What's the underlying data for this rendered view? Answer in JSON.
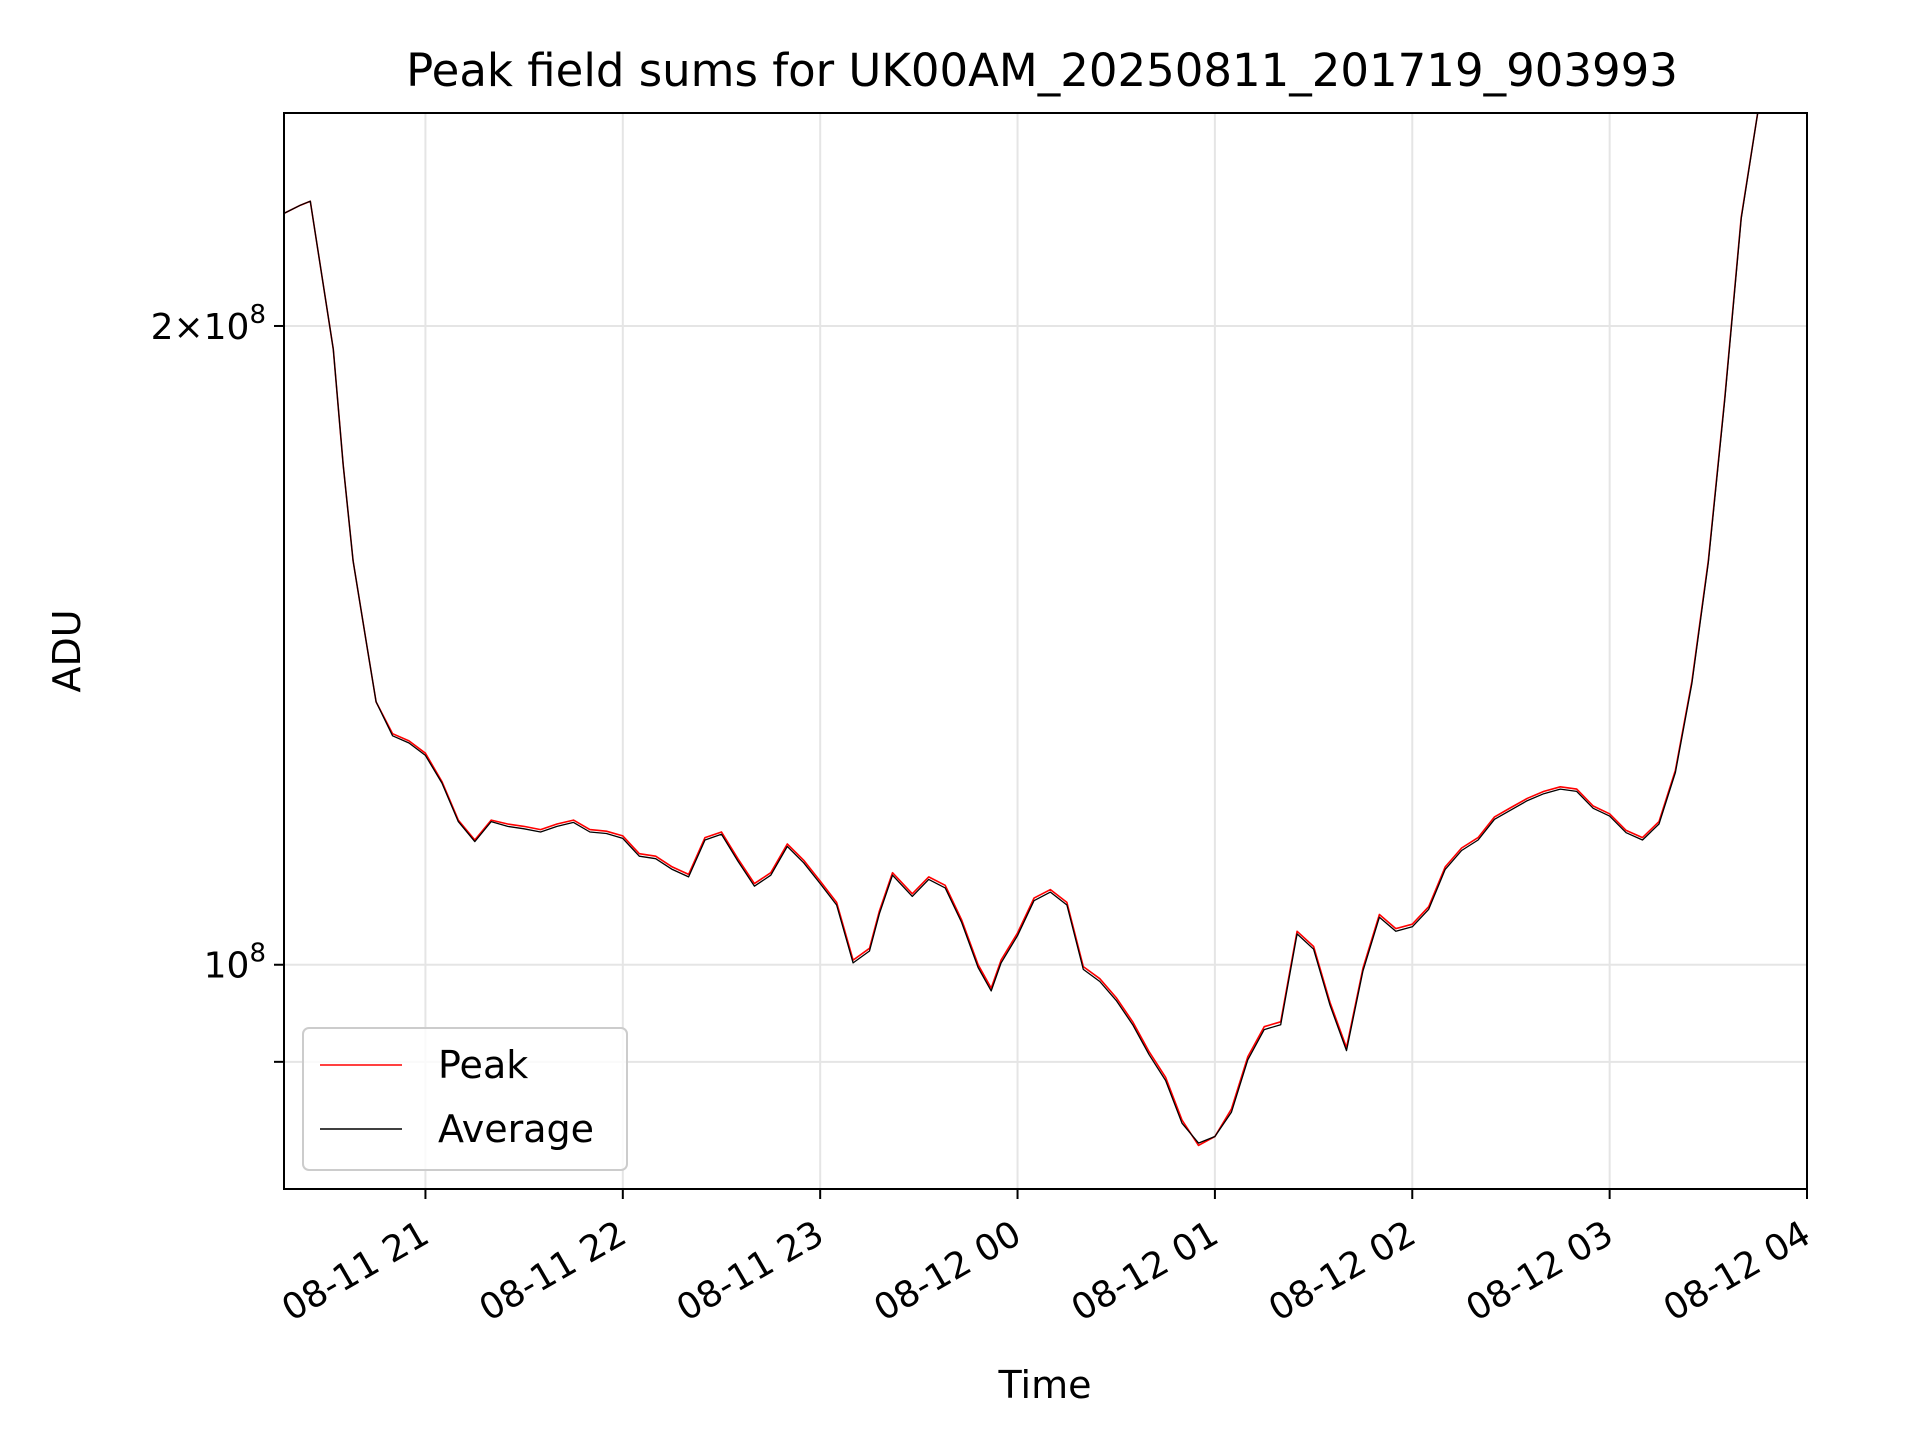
{
  "chart_data": {
    "type": "line",
    "title": "Peak field sums for UK00AM_20250811_201719_903993",
    "xlabel": "Time",
    "ylabel": "ADU",
    "y_scale": "log",
    "xlim": [
      "2025-08-11 20:17",
      "2025-08-12 04:00"
    ],
    "ylim": [
      78400000,
      252000000
    ],
    "grid": true,
    "legend_position": "lower-left",
    "x_ticks": [
      {
        "t": "2025-08-11 21:00",
        "label": "08-11 21"
      },
      {
        "t": "2025-08-11 22:00",
        "label": "08-11 22"
      },
      {
        "t": "2025-08-11 23:00",
        "label": "08-11 23"
      },
      {
        "t": "2025-08-12 00:00",
        "label": "08-12 00"
      },
      {
        "t": "2025-08-12 01:00",
        "label": "08-12 01"
      },
      {
        "t": "2025-08-12 02:00",
        "label": "08-12 02"
      },
      {
        "t": "2025-08-12 03:00",
        "label": "08-12 03"
      },
      {
        "t": "2025-08-12 04:00",
        "label": "08-12 04"
      }
    ],
    "y_ticks": [
      {
        "value": 200000000,
        "base": "2×10",
        "exp": "8"
      },
      {
        "value": 100000000,
        "base": "10",
        "exp": "8"
      },
      {
        "value": 90000000,
        "base": "",
        "exp": ""
      }
    ],
    "x": [
      "2025-08-11 20:17",
      "2025-08-11 20:22",
      "2025-08-11 20:25",
      "2025-08-11 20:32",
      "2025-08-11 20:35",
      "2025-08-11 20:38",
      "2025-08-11 20:42",
      "2025-08-11 20:45",
      "2025-08-11 20:50",
      "2025-08-11 20:55",
      "2025-08-11 21:00",
      "2025-08-11 21:05",
      "2025-08-11 21:10",
      "2025-08-11 21:15",
      "2025-08-11 21:20",
      "2025-08-11 21:25",
      "2025-08-11 21:30",
      "2025-08-11 21:35",
      "2025-08-11 21:40",
      "2025-08-11 21:45",
      "2025-08-11 21:50",
      "2025-08-11 21:55",
      "2025-08-11 22:00",
      "2025-08-11 22:05",
      "2025-08-11 22:10",
      "2025-08-11 22:15",
      "2025-08-11 22:20",
      "2025-08-11 22:25",
      "2025-08-11 22:30",
      "2025-08-11 22:35",
      "2025-08-11 22:40",
      "2025-08-11 22:45",
      "2025-08-11 22:50",
      "2025-08-11 22:55",
      "2025-08-11 23:00",
      "2025-08-11 23:05",
      "2025-08-11 23:10",
      "2025-08-11 23:15",
      "2025-08-11 23:18",
      "2025-08-11 23:22",
      "2025-08-11 23:28",
      "2025-08-11 23:33",
      "2025-08-11 23:38",
      "2025-08-11 23:43",
      "2025-08-11 23:48",
      "2025-08-11 23:52",
      "2025-08-11 23:55",
      "2025-08-12 00:00",
      "2025-08-12 00:05",
      "2025-08-12 00:10",
      "2025-08-12 00:15",
      "2025-08-12 00:20",
      "2025-08-12 00:25",
      "2025-08-12 00:30",
      "2025-08-12 00:35",
      "2025-08-12 00:40",
      "2025-08-12 00:45",
      "2025-08-12 00:50",
      "2025-08-12 00:55",
      "2025-08-12 01:00",
      "2025-08-12 01:05",
      "2025-08-12 01:10",
      "2025-08-12 01:15",
      "2025-08-12 01:20",
      "2025-08-12 01:25",
      "2025-08-12 01:30",
      "2025-08-12 01:35",
      "2025-08-12 01:40",
      "2025-08-12 01:45",
      "2025-08-12 01:50",
      "2025-08-12 01:55",
      "2025-08-12 02:00",
      "2025-08-12 02:05",
      "2025-08-12 02:10",
      "2025-08-12 02:15",
      "2025-08-12 02:20",
      "2025-08-12 02:25",
      "2025-08-12 02:30",
      "2025-08-12 02:35",
      "2025-08-12 02:40",
      "2025-08-12 02:45",
      "2025-08-12 02:50",
      "2025-08-12 02:55",
      "2025-08-12 03:00",
      "2025-08-12 03:05",
      "2025-08-12 03:10",
      "2025-08-12 03:15",
      "2025-08-12 03:20",
      "2025-08-12 03:25",
      "2025-08-12 03:30",
      "2025-08-12 03:35",
      "2025-08-12 03:40",
      "2025-08-12 03:45"
    ],
    "series": [
      {
        "name": "Peak",
        "color": "#ff0000",
        "values": [
          226000000,
          228000000,
          229000000,
          195000000,
          172000000,
          155000000,
          142000000,
          133000000,
          128500000,
          127500000,
          125800000,
          122000000,
          117000000,
          114500000,
          117000000,
          116500000,
          116200000,
          115800000,
          116500000,
          117000000,
          115800000,
          115600000,
          115000000,
          112800000,
          112500000,
          111200000,
          110300000,
          114800000,
          115500000,
          112200000,
          109200000,
          110500000,
          114000000,
          112000000,
          109500000,
          107000000,
          100500000,
          101800000,
          106000000,
          110500000,
          108000000,
          110000000,
          109000000,
          105000000,
          100000000,
          97500000,
          100500000,
          103500000,
          107500000,
          108500000,
          107000000,
          99800000,
          98500000,
          96500000,
          94000000,
          91000000,
          88500000,
          84500000,
          82200000,
          83000000,
          85500000,
          90500000,
          93500000,
          94000000,
          103700000,
          102000000,
          96000000,
          91400000,
          99600000,
          105600000,
          104000000,
          104500000,
          106500000,
          111200000,
          113500000,
          114800000,
          117400000,
          118600000,
          119800000,
          120700000,
          121300000,
          121000000,
          118800000,
          117800000,
          115700000,
          114800000,
          116800000,
          123500000,
          136000000,
          155000000,
          185000000,
          225000000,
          252000000
        ]
      },
      {
        "name": "Average",
        "color": "#000000",
        "values": [
          226000000,
          228000000,
          229000000,
          195000000,
          172000000,
          155000000,
          142000000,
          133000000,
          128200000,
          127200000,
          125500000,
          121800000,
          116800000,
          114300000,
          116800000,
          116200000,
          115900000,
          115500000,
          116200000,
          116700000,
          115500000,
          115300000,
          114700000,
          112500000,
          112200000,
          110900000,
          110000000,
          114500000,
          115200000,
          111900000,
          108900000,
          110200000,
          113700000,
          111700000,
          109200000,
          106700000,
          100200000,
          101500000,
          105700000,
          110200000,
          107700000,
          109700000,
          108700000,
          104700000,
          99700000,
          97200000,
          100200000,
          103200000,
          107200000,
          108200000,
          106700000,
          99500000,
          98200000,
          96200000,
          93700000,
          90700000,
          88200000,
          84200000,
          82400000,
          83000000,
          85200000,
          90200000,
          93200000,
          93700000,
          103400000,
          101700000,
          95700000,
          91100000,
          99300000,
          105300000,
          103700000,
          104200000,
          106200000,
          110900000,
          113200000,
          114500000,
          117100000,
          118300000,
          119500000,
          120400000,
          121000000,
          120700000,
          118500000,
          117500000,
          115400000,
          114500000,
          116500000,
          123200000,
          135700000,
          154700000,
          184700000,
          224700000,
          252000000
        ]
      }
    ]
  }
}
